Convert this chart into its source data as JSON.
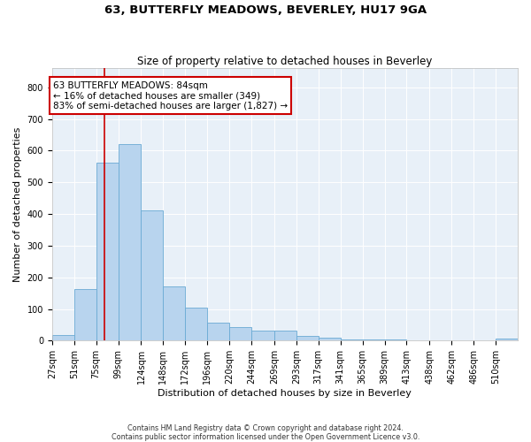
{
  "title": "63, BUTTERFLY MEADOWS, BEVERLEY, HU17 9GA",
  "subtitle": "Size of property relative to detached houses in Beverley",
  "xlabel": "Distribution of detached houses by size in Beverley",
  "ylabel": "Number of detached properties",
  "bar_color": "#b8d4ee",
  "bar_edge_color": "#6aaad4",
  "bg_color": "#e8f0f8",
  "annotation_text": "63 BUTTERFLY MEADOWS: 84sqm\n← 16% of detached houses are smaller (349)\n83% of semi-detached houses are larger (1,827) →",
  "vline_x": 84,
  "vline_color": "#cc0000",
  "categories": [
    "27sqm",
    "51sqm",
    "75sqm",
    "99sqm",
    "124sqm",
    "148sqm",
    "172sqm",
    "196sqm",
    "220sqm",
    "244sqm",
    "269sqm",
    "293sqm",
    "317sqm",
    "341sqm",
    "365sqm",
    "389sqm",
    "413sqm",
    "438sqm",
    "462sqm",
    "486sqm",
    "510sqm"
  ],
  "bin_edges": [
    27,
    51,
    75,
    99,
    124,
    148,
    172,
    196,
    220,
    244,
    269,
    293,
    317,
    341,
    365,
    389,
    413,
    438,
    462,
    486,
    510
  ],
  "bar_heights": [
    18,
    163,
    563,
    620,
    412,
    170,
    103,
    56,
    44,
    33,
    33,
    15,
    10,
    5,
    5,
    5,
    0,
    0,
    0,
    0,
    7
  ],
  "ylim": [
    0,
    860
  ],
  "yticks": [
    0,
    100,
    200,
    300,
    400,
    500,
    600,
    700,
    800
  ],
  "footnote": "Contains HM Land Registry data © Crown copyright and database right 2024.\nContains public sector information licensed under the Open Government Licence v3.0.",
  "title_fontsize": 9.5,
  "subtitle_fontsize": 8.5,
  "xlabel_fontsize": 8,
  "ylabel_fontsize": 8,
  "tick_fontsize": 7,
  "annotation_fontsize": 7.5,
  "footnote_fontsize": 5.8
}
